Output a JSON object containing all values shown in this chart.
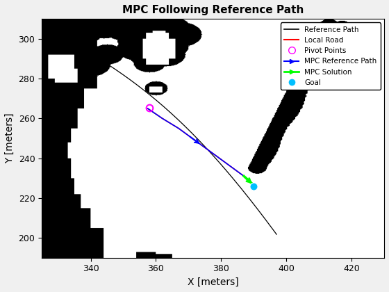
{
  "title": "MPC Following Reference Path",
  "xlabel": "X [meters]",
  "ylabel": "Y [meters]",
  "xlim": [
    325,
    430
  ],
  "ylim": [
    190,
    310
  ],
  "figsize": [
    5.6,
    4.2
  ],
  "dpi": 100,
  "background_color": "#f0f0f0",
  "axes_background": "#ffffff",
  "ref_path_color": "#000000",
  "local_road_color": "#ff0000",
  "pivot_color": "#ff00ff",
  "mpc_ref_color": "#0000ff",
  "mpc_sol_color": "#00ff00",
  "goal_color": "#00bfff",
  "pivot_x": 358.0,
  "pivot_y": 265.5,
  "goal_x": 390.0,
  "goal_y": 226.0
}
